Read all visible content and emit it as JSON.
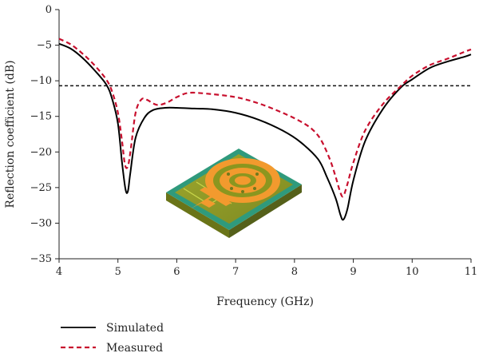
{
  "chart_data": {
    "type": "line",
    "xlabel": "Frequency (GHz)",
    "ylabel": "Reflection coefficient (dB)",
    "xlim": [
      4,
      11
    ],
    "ylim": [
      -35,
      0
    ],
    "xticks": [
      "4",
      "5",
      "6",
      "7",
      "8",
      "9",
      "10",
      "11"
    ],
    "yticks": [
      "0",
      "−5",
      "−10",
      "−15",
      "−20",
      "−25",
      "−30",
      "−35"
    ],
    "grid": false,
    "legend_position": "bottom-left",
    "reference_line": {
      "y": -10.7,
      "style": "dashed"
    },
    "series": [
      {
        "name": "Simulated",
        "color": "#000000",
        "style": "solid",
        "x": [
          4.0,
          4.2,
          4.4,
          4.6,
          4.8,
          4.9,
          5.0,
          5.07,
          5.13,
          5.17,
          5.21,
          5.3,
          5.45,
          5.6,
          5.8,
          6.0,
          6.3,
          6.6,
          7.0,
          7.4,
          7.8,
          8.1,
          8.4,
          8.55,
          8.7,
          8.78,
          8.83,
          8.9,
          9.0,
          9.2,
          9.5,
          9.8,
          10.0,
          10.3,
          10.6,
          10.9,
          11.0
        ],
        "y": [
          -4.8,
          -5.5,
          -6.8,
          -8.5,
          -10.5,
          -12.5,
          -16.0,
          -21.5,
          -25.3,
          -25.5,
          -23.0,
          -18.0,
          -15.2,
          -14.1,
          -13.8,
          -13.8,
          -13.9,
          -14.0,
          -14.5,
          -15.5,
          -17.0,
          -18.6,
          -21.0,
          -23.5,
          -26.5,
          -28.8,
          -29.5,
          -28.0,
          -24.0,
          -18.5,
          -14.0,
          -11.0,
          -9.8,
          -8.2,
          -7.3,
          -6.6,
          -6.3
        ]
      },
      {
        "name": "Measured",
        "color": "#c8102e",
        "style": "dashed",
        "x": [
          4.0,
          4.2,
          4.4,
          4.6,
          4.8,
          4.9,
          5.0,
          5.07,
          5.12,
          5.17,
          5.22,
          5.3,
          5.4,
          5.5,
          5.6,
          5.7,
          5.85,
          6.0,
          6.2,
          6.5,
          7.0,
          7.4,
          7.8,
          8.1,
          8.3,
          8.45,
          8.6,
          8.7,
          8.78,
          8.83,
          8.9,
          9.0,
          9.2,
          9.5,
          9.8,
          10.0,
          10.3,
          10.6,
          10.9,
          11.0
        ],
        "y": [
          -4.1,
          -4.9,
          -6.2,
          -7.8,
          -9.8,
          -11.5,
          -14.5,
          -18.5,
          -21.8,
          -22.0,
          -19.5,
          -14.5,
          -12.6,
          -12.7,
          -13.2,
          -13.4,
          -13.0,
          -12.3,
          -11.7,
          -11.8,
          -12.3,
          -13.2,
          -14.5,
          -15.7,
          -16.8,
          -18.3,
          -21.0,
          -23.5,
          -25.7,
          -26.2,
          -24.5,
          -21.5,
          -17.0,
          -13.3,
          -10.8,
          -9.3,
          -7.8,
          -6.9,
          -5.9,
          -5.6
        ]
      }
    ]
  }
}
